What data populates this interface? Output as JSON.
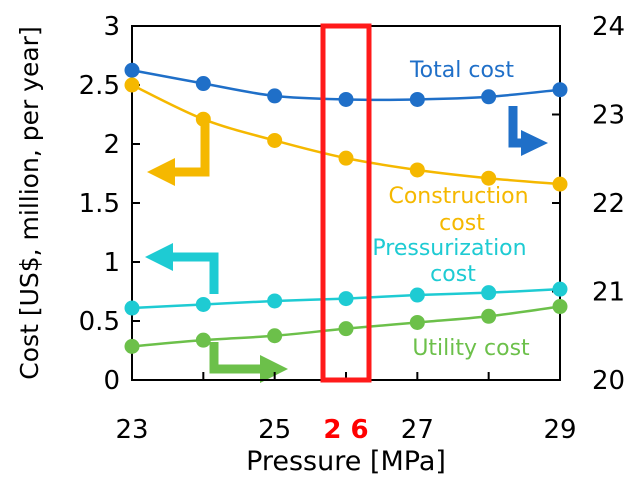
{
  "chart_data": {
    "type": "line",
    "title": "",
    "xlabel": "Pressure [MPa]",
    "ylabel": "Cost [US$, million, per year]",
    "x": [
      23,
      24,
      25,
      26,
      27,
      28,
      29
    ],
    "xlim": [
      23,
      29
    ],
    "x_ticks": [
      "23",
      "25",
      "27",
      "29"
    ],
    "highlight_tick": "2 6",
    "highlight_x": 26,
    "ylim": [
      0,
      3
    ],
    "y_ticks": [
      "0",
      "0.5",
      "1",
      "1.5",
      "2",
      "2.5",
      "3"
    ],
    "y2lim": [
      20,
      24
    ],
    "y2_ticks": [
      "20",
      "21",
      "22",
      "23",
      "24"
    ],
    "grid": false,
    "series": [
      {
        "name": "Total cost",
        "axis": "right",
        "color": "#1f6fc8",
        "values": [
          23.5,
          23.35,
          23.21,
          23.17,
          23.17,
          23.2,
          23.28
        ]
      },
      {
        "name": "Construction cost",
        "axis": "left",
        "color": "#f5b800",
        "values": [
          2.5,
          2.21,
          2.03,
          1.88,
          1.78,
          1.71,
          1.66
        ]
      },
      {
        "name": "Pressurization cost",
        "axis": "left",
        "color": "#1ecbd3",
        "values": [
          0.61,
          0.64,
          0.67,
          0.69,
          0.72,
          0.74,
          0.77
        ]
      },
      {
        "name": "Utility cost",
        "axis": "right",
        "color": "#6cc04a",
        "values": [
          20.38,
          20.45,
          20.5,
          20.58,
          20.65,
          20.72,
          20.83
        ]
      }
    ],
    "annotations": {
      "total": [
        "Total cost"
      ],
      "construction": [
        "Construction",
        "cost"
      ],
      "pressurization": [
        "Pressurization",
        "cost"
      ],
      "utility": [
        "Utility cost"
      ]
    }
  }
}
